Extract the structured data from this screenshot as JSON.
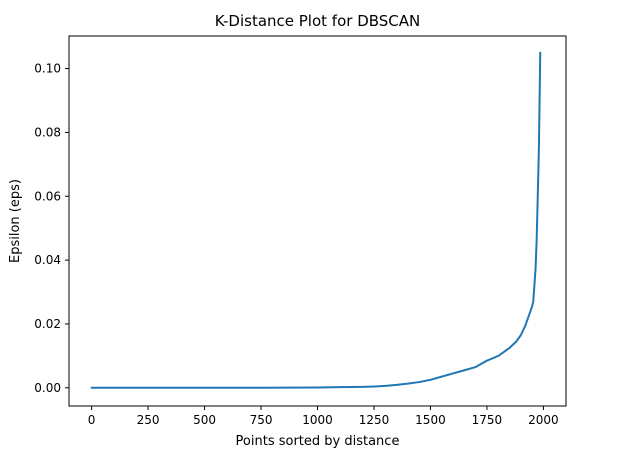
{
  "chart_data": {
    "type": "line",
    "title": "K-Distance Plot for DBSCAN",
    "xlabel": "Points sorted by distance",
    "ylabel": "Epsilon (eps)",
    "xlim": [
      -100,
      2100
    ],
    "ylim": [
      -0.0057,
      0.1102
    ],
    "xticks": [
      0,
      250,
      500,
      750,
      1000,
      1250,
      1500,
      1750,
      2000
    ],
    "xtick_labels": [
      "0",
      "250",
      "500",
      "750",
      "1000",
      "1250",
      "1500",
      "1750",
      "2000"
    ],
    "yticks": [
      0.0,
      0.02,
      0.04,
      0.06,
      0.08,
      0.1
    ],
    "ytick_labels": [
      "0.00",
      "0.02",
      "0.04",
      "0.06",
      "0.08",
      "0.10"
    ],
    "grid": false,
    "series": [
      {
        "color": "#1f77b4",
        "x": [
          0,
          250,
          500,
          750,
          1000,
          1100,
          1200,
          1250,
          1300,
          1350,
          1400,
          1450,
          1500,
          1550,
          1600,
          1650,
          1700,
          1750,
          1800,
          1850,
          1880,
          1900,
          1920,
          1940,
          1950,
          1955,
          1960,
          1965,
          1970,
          1975,
          1980,
          1983,
          1986
        ],
        "y": [
          0.0,
          0.0,
          0.0,
          0.0,
          0.0001,
          0.0002,
          0.0003,
          0.0004,
          0.0006,
          0.0009,
          0.0013,
          0.0018,
          0.0025,
          0.0035,
          0.0045,
          0.0055,
          0.0065,
          0.0085,
          0.01,
          0.0125,
          0.0145,
          0.0165,
          0.0195,
          0.0235,
          0.0255,
          0.027,
          0.032,
          0.037,
          0.046,
          0.06,
          0.075,
          0.09,
          0.105
        ]
      }
    ]
  }
}
